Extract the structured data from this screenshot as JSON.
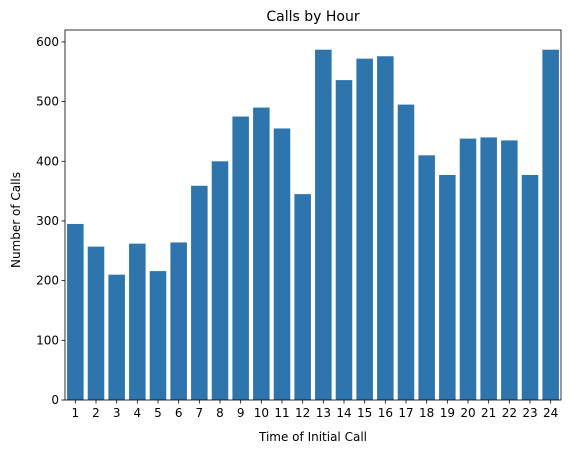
{
  "chart_data": {
    "type": "bar",
    "title": "Calls by Hour",
    "xlabel": "Time of Initial Call",
    "ylabel": "Number of Calls",
    "categories": [
      "1",
      "2",
      "3",
      "4",
      "5",
      "6",
      "7",
      "8",
      "9",
      "10",
      "11",
      "12",
      "13",
      "14",
      "15",
      "16",
      "17",
      "18",
      "19",
      "20",
      "21",
      "22",
      "23",
      "24"
    ],
    "values": [
      295,
      257,
      210,
      262,
      216,
      264,
      359,
      400,
      475,
      490,
      455,
      345,
      587,
      536,
      572,
      576,
      495,
      410,
      377,
      438,
      440,
      435,
      377,
      587
    ],
    "ylim": [
      0,
      620
    ],
    "yticks": [
      0,
      100,
      200,
      300,
      400,
      500,
      600
    ],
    "grid": false,
    "colors": {
      "bar": "#2e74ad",
      "axis": "#000000",
      "background": "#ffffff"
    }
  }
}
